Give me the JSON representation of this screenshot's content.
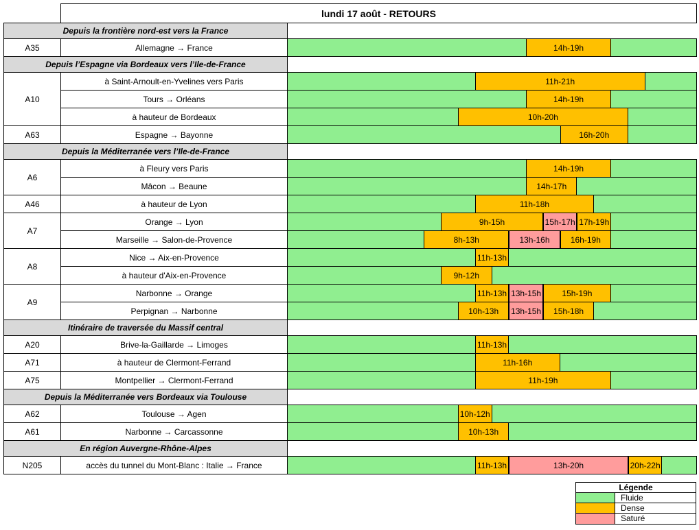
{
  "title": "lundi 17 août - RETOURS",
  "colors": {
    "fluide": "#90ee90",
    "dense": "#ffc000",
    "sature": "#ff9c9c",
    "section_bg": "#d9d9d9",
    "border": "#000000"
  },
  "legend": {
    "title": "Légende",
    "items": [
      {
        "label": "Fluide",
        "status": "fluide"
      },
      {
        "label": "Dense",
        "status": "dense"
      },
      {
        "label": "Saturé",
        "status": "sature"
      }
    ]
  },
  "chart_data": {
    "type": "table",
    "subtype": "traffic-forecast-gantt",
    "title": "lundi 17 août - RETOURS",
    "x_axis": {
      "unit": "hour",
      "min": 0,
      "max": 24
    },
    "default_status": "Fluide",
    "statuses": [
      "Fluide",
      "Dense",
      "Saturé"
    ],
    "rows": [
      {
        "kind": "section",
        "label": "Depuis la frontière nord-est vers la France"
      },
      {
        "kind": "route",
        "road": "A35",
        "description": "Allemagne → France",
        "segments": [
          {
            "status": "Dense",
            "from": 14,
            "to": 19,
            "label": "14h-19h"
          }
        ]
      },
      {
        "kind": "section",
        "label": "Depuis l’Espagne via Bordeaux vers l’Ile-de-France"
      },
      {
        "kind": "route",
        "road": "A10",
        "description": "à Saint-Arnoult-en-Yvelines vers Paris",
        "segments": [
          {
            "status": "Dense",
            "from": 11,
            "to": 21,
            "label": "11h-21h"
          }
        ]
      },
      {
        "kind": "route",
        "road": "A10",
        "description": "Tours → Orléans",
        "segments": [
          {
            "status": "Dense",
            "from": 14,
            "to": 19,
            "label": "14h-19h"
          }
        ]
      },
      {
        "kind": "route",
        "road": "A10",
        "description": "à hauteur de Bordeaux",
        "segments": [
          {
            "status": "Dense",
            "from": 10,
            "to": 20,
            "label": "10h-20h"
          }
        ]
      },
      {
        "kind": "route",
        "road": "A63",
        "description": "Espagne → Bayonne",
        "segments": [
          {
            "status": "Dense",
            "from": 16,
            "to": 20,
            "label": "16h-20h"
          }
        ]
      },
      {
        "kind": "section",
        "label": "Depuis la Méditerranée vers l’Ile-de-France"
      },
      {
        "kind": "route",
        "road": "A6",
        "description": "à Fleury vers Paris",
        "segments": [
          {
            "status": "Dense",
            "from": 14,
            "to": 19,
            "label": "14h-19h"
          }
        ]
      },
      {
        "kind": "route",
        "road": "A6",
        "description": "Mâcon → Beaune",
        "segments": [
          {
            "status": "Dense",
            "from": 14,
            "to": 17,
            "label": "14h-17h"
          }
        ]
      },
      {
        "kind": "route",
        "road": "A46",
        "description": "à hauteur de Lyon",
        "segments": [
          {
            "status": "Dense",
            "from": 11,
            "to": 18,
            "label": "11h-18h"
          }
        ]
      },
      {
        "kind": "route",
        "road": "A7",
        "description": "Orange → Lyon",
        "segments": [
          {
            "status": "Dense",
            "from": 9,
            "to": 15,
            "label": "9h-15h"
          },
          {
            "status": "Saturé",
            "from": 15,
            "to": 17,
            "label": "15h-17h"
          },
          {
            "status": "Dense",
            "from": 17,
            "to": 19,
            "label": "17h-19h"
          }
        ]
      },
      {
        "kind": "route",
        "road": "A7",
        "description": "Marseille → Salon-de-Provence",
        "segments": [
          {
            "status": "Dense",
            "from": 8,
            "to": 13,
            "label": "8h-13h"
          },
          {
            "status": "Saturé",
            "from": 13,
            "to": 16,
            "label": "13h-16h"
          },
          {
            "status": "Dense",
            "from": 16,
            "to": 19,
            "label": "16h-19h"
          }
        ]
      },
      {
        "kind": "route",
        "road": "A8",
        "description": "Nice → Aix-en-Provence",
        "segments": [
          {
            "status": "Dense",
            "from": 11,
            "to": 13,
            "label": "11h-13h"
          }
        ]
      },
      {
        "kind": "route",
        "road": "A8",
        "description": "à hauteur d'Aix-en-Provence",
        "segments": [
          {
            "status": "Dense",
            "from": 9,
            "to": 12,
            "label": "9h-12h"
          }
        ]
      },
      {
        "kind": "route",
        "road": "A9",
        "description": "Narbonne → Orange",
        "segments": [
          {
            "status": "Dense",
            "from": 11,
            "to": 13,
            "label": "11h-13h"
          },
          {
            "status": "Saturé",
            "from": 13,
            "to": 15,
            "label": "13h-15h"
          },
          {
            "status": "Dense",
            "from": 15,
            "to": 19,
            "label": "15h-19h"
          }
        ]
      },
      {
        "kind": "route",
        "road": "A9",
        "description": "Perpignan → Narbonne",
        "segments": [
          {
            "status": "Dense",
            "from": 10,
            "to": 13,
            "label": "10h-13h"
          },
          {
            "status": "Saturé",
            "from": 13,
            "to": 15,
            "label": "13h-15h"
          },
          {
            "status": "Dense",
            "from": 15,
            "to": 18,
            "label": "15h-18h"
          }
        ]
      },
      {
        "kind": "section",
        "label": "Itinéraire de traversée du Massif central"
      },
      {
        "kind": "route",
        "road": "A20",
        "description": "Brive-la-Gaillarde → Limoges",
        "segments": [
          {
            "status": "Dense",
            "from": 11,
            "to": 13,
            "label": "11h-13h"
          }
        ]
      },
      {
        "kind": "route",
        "road": "A71",
        "description": "à hauteur de Clermont-Ferrand",
        "segments": [
          {
            "status": "Dense",
            "from": 11,
            "to": 16,
            "label": "11h-16h"
          }
        ]
      },
      {
        "kind": "route",
        "road": "A75",
        "description": "Montpellier → Clermont-Ferrand",
        "segments": [
          {
            "status": "Dense",
            "from": 11,
            "to": 19,
            "label": "11h-19h"
          }
        ]
      },
      {
        "kind": "section",
        "label": "Depuis la Méditerranée vers Bordeaux via Toulouse"
      },
      {
        "kind": "route",
        "road": "A62",
        "description": "Toulouse → Agen",
        "segments": [
          {
            "status": "Dense",
            "from": 10,
            "to": 12,
            "label": "10h-12h"
          }
        ]
      },
      {
        "kind": "route",
        "road": "A61",
        "description": "Narbonne → Carcassonne",
        "segments": [
          {
            "status": "Dense",
            "from": 10,
            "to": 13,
            "label": "10h-13h"
          }
        ]
      },
      {
        "kind": "section",
        "label": "En région Auvergne-Rhône-Alpes"
      },
      {
        "kind": "route",
        "road": "N205",
        "description": "accès du tunnel du Mont-Blanc : Italie → France",
        "segments": [
          {
            "status": "Dense",
            "from": 11,
            "to": 13,
            "label": "11h-13h"
          },
          {
            "status": "Saturé",
            "from": 13,
            "to": 20,
            "label": "13h-20h"
          },
          {
            "status": "Dense",
            "from": 20,
            "to": 22,
            "label": "20h-22h"
          }
        ]
      }
    ]
  }
}
